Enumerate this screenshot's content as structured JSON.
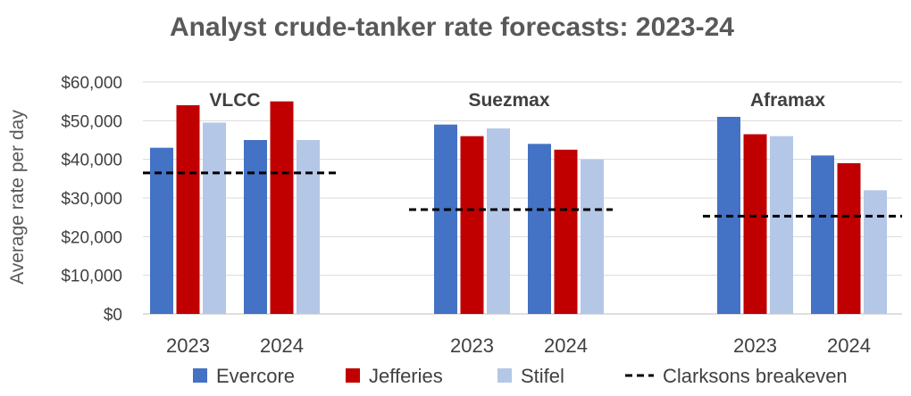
{
  "chart_data": {
    "type": "bar",
    "title": "Analyst crude-tanker rate forecasts: 2023-24",
    "ylabel": "Average rate per day",
    "ylim": [
      0,
      60000
    ],
    "yticks": [
      0,
      10000,
      20000,
      30000,
      40000,
      50000,
      60000
    ],
    "ytick_labels": [
      "$0",
      "$10,000",
      "$20,000",
      "$30,000",
      "$40,000",
      "$50,000",
      "$60,000"
    ],
    "grid": true,
    "legend_position": "bottom",
    "groups": [
      {
        "name": "VLCC",
        "years": [
          "2023",
          "2024"
        ],
        "series": [
          {
            "name": "Evercore",
            "values": [
              43000,
              45000
            ]
          },
          {
            "name": "Jefferies",
            "values": [
              54000,
              55000
            ]
          },
          {
            "name": "Stifel",
            "values": [
              49500,
              45000
            ]
          }
        ],
        "breakeven": 36500
      },
      {
        "name": "Suezmax",
        "years": [
          "2023",
          "2024"
        ],
        "series": [
          {
            "name": "Evercore",
            "values": [
              49000,
              44000
            ]
          },
          {
            "name": "Jefferies",
            "values": [
              46000,
              42500
            ]
          },
          {
            "name": "Stifel",
            "values": [
              48000,
              40000
            ]
          }
        ],
        "breakeven": 27000
      },
      {
        "name": "Aframax",
        "years": [
          "2023",
          "2024"
        ],
        "series": [
          {
            "name": "Evercore",
            "values": [
              51000,
              41000
            ]
          },
          {
            "name": "Jefferies",
            "values": [
              46500,
              39000
            ]
          },
          {
            "name": "Stifel",
            "values": [
              46000,
              32000
            ]
          }
        ],
        "breakeven": 25300
      }
    ],
    "legend": [
      {
        "name": "Evercore",
        "kind": "bar",
        "color": "#4472C4"
      },
      {
        "name": "Jefferies",
        "kind": "bar",
        "color": "#C00000"
      },
      {
        "name": "Stifel",
        "kind": "bar",
        "color": "#B4C7E7"
      },
      {
        "name": "Clarksons breakeven",
        "kind": "dashed-line",
        "color": "#000000"
      }
    ],
    "colors": {
      "Evercore": "#4472C4",
      "Jefferies": "#C00000",
      "Stifel": "#B4C7E7",
      "breakeven": "#000000",
      "grid": "#D9D9D9"
    }
  }
}
